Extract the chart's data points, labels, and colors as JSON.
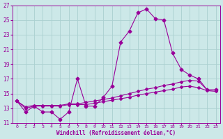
{
  "xlabel": "Windchill (Refroidissement éolien,°C)",
  "xlim": [
    -0.5,
    23.5
  ],
  "ylim": [
    11,
    27
  ],
  "xticks": [
    0,
    1,
    2,
    3,
    4,
    5,
    6,
    7,
    8,
    9,
    10,
    11,
    12,
    13,
    14,
    15,
    16,
    17,
    18,
    19,
    20,
    21,
    22,
    23
  ],
  "yticks": [
    11,
    13,
    15,
    17,
    19,
    21,
    23,
    25,
    27
  ],
  "background_color": "#cce8e8",
  "grid_color": "#aad0d0",
  "line_color": "#990099",
  "spine_color": "#990099",
  "lines": [
    {
      "x": [
        0,
        1,
        2,
        3,
        4,
        5,
        6,
        7,
        8,
        9,
        10,
        11,
        12,
        13,
        14,
        15,
        16,
        17,
        18,
        19,
        20,
        21,
        22,
        23
      ],
      "y": [
        14.0,
        12.5,
        13.3,
        12.5,
        12.5,
        11.5,
        12.5,
        17.0,
        13.3,
        13.3,
        14.5,
        16.0,
        22.0,
        23.5,
        26.0,
        26.5,
        25.2,
        25.0,
        20.5,
        18.3,
        17.5,
        17.0,
        15.5,
        15.5
      ],
      "marker": "D",
      "markersize": 2.5
    },
    {
      "x": [
        0,
        1,
        2,
        3,
        4,
        5,
        6,
        7,
        8,
        9,
        10,
        11,
        12,
        13,
        14,
        15,
        16,
        17,
        18,
        19,
        20,
        21,
        22,
        23
      ],
      "y": [
        14.0,
        13.2,
        13.4,
        13.4,
        13.4,
        13.4,
        13.6,
        13.6,
        13.8,
        14.0,
        14.2,
        14.4,
        14.7,
        15.0,
        15.3,
        15.6,
        15.8,
        16.1,
        16.3,
        16.6,
        16.8,
        16.7,
        15.5,
        15.5
      ],
      "marker": "D",
      "markersize": 2.0
    },
    {
      "x": [
        0,
        1,
        2,
        3,
        4,
        5,
        6,
        7,
        8,
        9,
        10,
        11,
        12,
        13,
        14,
        15,
        16,
        17,
        18,
        19,
        20,
        21,
        22,
        23
      ],
      "y": [
        14.0,
        13.0,
        13.3,
        13.3,
        13.3,
        13.3,
        13.5,
        13.5,
        13.5,
        13.7,
        13.9,
        14.1,
        14.3,
        14.5,
        14.8,
        15.0,
        15.2,
        15.4,
        15.6,
        15.9,
        16.0,
        15.8,
        15.4,
        15.3
      ],
      "marker": "D",
      "markersize": 2.0
    }
  ]
}
